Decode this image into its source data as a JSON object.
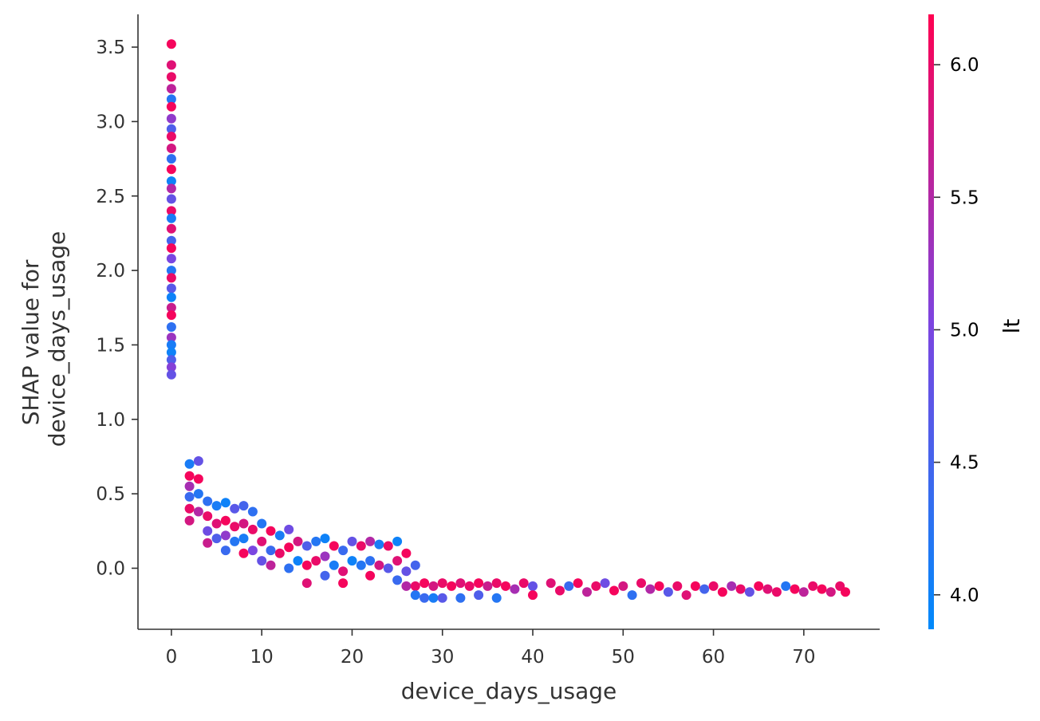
{
  "chart_data": {
    "type": "scatter",
    "title": "",
    "xlabel": "device_days_usage",
    "ylabel_lines": [
      "SHAP value for",
      "device_days_usage"
    ],
    "xlim": [
      -3.7,
      78.4
    ],
    "ylim": [
      -0.41,
      3.72
    ],
    "xticks": [
      0,
      10,
      20,
      30,
      40,
      50,
      60,
      70
    ],
    "xtick_labels": [
      "0",
      "10",
      "20",
      "30",
      "40",
      "50",
      "60",
      "70"
    ],
    "yticks": [
      0.0,
      0.5,
      1.0,
      1.5,
      2.0,
      2.5,
      3.0,
      3.5
    ],
    "ytick_labels": [
      "0.0",
      "0.5",
      "1.0",
      "1.5",
      "2.0",
      "2.5",
      "3.0",
      "3.5"
    ],
    "grid": false,
    "colorbar": {
      "label": "lt",
      "range": [
        3.87,
        6.19
      ],
      "ticks": [
        4.0,
        4.5,
        5.0,
        5.5,
        6.0
      ],
      "tick_labels": [
        "4.0",
        "4.5",
        "5.0",
        "5.5",
        "6.0"
      ],
      "colors": [
        "#008afb",
        "#7d44e0",
        "#ff0051"
      ]
    },
    "series": [
      {
        "color_by": "lt",
        "points": [
          [
            0,
            3.52,
            6.1
          ],
          [
            0,
            3.38,
            5.9
          ],
          [
            0,
            3.3,
            6.0
          ],
          [
            0,
            3.22,
            5.6
          ],
          [
            0,
            3.15,
            4.2
          ],
          [
            0,
            3.1,
            6.1
          ],
          [
            0,
            3.02,
            5.2
          ],
          [
            0,
            2.95,
            4.6
          ],
          [
            0,
            2.9,
            6.0
          ],
          [
            0,
            2.82,
            5.8
          ],
          [
            0,
            2.75,
            4.3
          ],
          [
            0,
            2.68,
            6.1
          ],
          [
            0,
            2.6,
            4.0
          ],
          [
            0,
            2.55,
            5.5
          ],
          [
            0,
            2.48,
            4.8
          ],
          [
            0,
            2.4,
            6.0
          ],
          [
            0,
            2.35,
            4.1
          ],
          [
            0,
            2.28,
            5.9
          ],
          [
            0,
            2.2,
            4.5
          ],
          [
            0,
            2.15,
            6.1
          ],
          [
            0,
            2.08,
            5.0
          ],
          [
            0,
            2.0,
            4.2
          ],
          [
            0,
            1.95,
            6.0
          ],
          [
            0,
            1.88,
            4.7
          ],
          [
            0,
            1.82,
            4.0
          ],
          [
            0,
            1.75,
            5.7
          ],
          [
            0,
            1.7,
            6.1
          ],
          [
            0,
            1.62,
            4.3
          ],
          [
            0,
            1.55,
            5.3
          ],
          [
            0,
            1.5,
            4.1
          ],
          [
            0,
            1.45,
            4.0
          ],
          [
            0,
            1.4,
            4.6
          ],
          [
            0,
            1.35,
            5.1
          ],
          [
            0,
            1.3,
            4.8
          ],
          [
            2,
            0.7,
            4.1
          ],
          [
            2,
            0.62,
            6.1
          ],
          [
            2,
            0.55,
            5.4
          ],
          [
            2,
            0.48,
            4.4
          ],
          [
            2,
            0.4,
            6.0
          ],
          [
            2,
            0.32,
            5.8
          ],
          [
            3,
            0.72,
            4.8
          ],
          [
            3,
            0.6,
            6.1
          ],
          [
            3,
            0.5,
            4.2
          ],
          [
            3,
            0.38,
            5.5
          ],
          [
            4,
            0.45,
            4.3
          ],
          [
            4,
            0.35,
            6.0
          ],
          [
            4,
            0.25,
            4.9
          ],
          [
            4,
            0.17,
            5.7
          ],
          [
            5,
            0.42,
            4.1
          ],
          [
            5,
            0.3,
            5.9
          ],
          [
            5,
            0.2,
            4.6
          ],
          [
            6,
            0.44,
            4.0
          ],
          [
            6,
            0.32,
            6.1
          ],
          [
            6,
            0.22,
            5.2
          ],
          [
            6,
            0.12,
            4.4
          ],
          [
            7,
            0.4,
            4.7
          ],
          [
            7,
            0.28,
            6.0
          ],
          [
            7,
            0.18,
            4.2
          ],
          [
            8,
            0.42,
            4.5
          ],
          [
            8,
            0.3,
            5.8
          ],
          [
            8,
            0.2,
            4.1
          ],
          [
            8,
            0.1,
            6.1
          ],
          [
            9,
            0.38,
            4.3
          ],
          [
            9,
            0.26,
            6.0
          ],
          [
            9,
            0.12,
            5.0
          ],
          [
            10,
            0.3,
            4.2
          ],
          [
            10,
            0.18,
            5.9
          ],
          [
            10,
            0.05,
            4.8
          ],
          [
            11,
            0.25,
            6.1
          ],
          [
            11,
            0.12,
            4.4
          ],
          [
            11,
            0.02,
            5.6
          ],
          [
            12,
            0.22,
            4.1
          ],
          [
            12,
            0.1,
            6.0
          ],
          [
            13,
            0.26,
            4.9
          ],
          [
            13,
            0.14,
            6.1
          ],
          [
            13,
            0.0,
            4.3
          ],
          [
            14,
            0.18,
            5.8
          ],
          [
            14,
            0.05,
            4.0
          ],
          [
            15,
            0.15,
            4.6
          ],
          [
            15,
            0.02,
            6.1
          ],
          [
            15,
            -0.1,
            5.9
          ],
          [
            16,
            0.18,
            4.2
          ],
          [
            16,
            0.05,
            6.0
          ],
          [
            17,
            0.2,
            4.0
          ],
          [
            17,
            0.08,
            5.3
          ],
          [
            17,
            -0.05,
            4.5
          ],
          [
            18,
            0.15,
            6.1
          ],
          [
            18,
            0.02,
            4.1
          ],
          [
            19,
            0.12,
            4.4
          ],
          [
            19,
            -0.02,
            5.9
          ],
          [
            19,
            -0.1,
            6.1
          ],
          [
            20,
            0.18,
            4.8
          ],
          [
            20,
            0.05,
            4.0
          ],
          [
            21,
            0.15,
            6.0
          ],
          [
            21,
            0.02,
            4.2
          ],
          [
            22,
            0.18,
            5.5
          ],
          [
            22,
            0.05,
            4.3
          ],
          [
            22,
            -0.05,
            6.1
          ],
          [
            23,
            0.16,
            4.1
          ],
          [
            23,
            0.02,
            5.8
          ],
          [
            24,
            0.15,
            6.0
          ],
          [
            24,
            0.0,
            4.7
          ],
          [
            25,
            0.18,
            4.0
          ],
          [
            25,
            0.05,
            5.9
          ],
          [
            25,
            -0.08,
            4.4
          ],
          [
            26,
            0.1,
            6.1
          ],
          [
            26,
            -0.02,
            4.8
          ],
          [
            26,
            -0.12,
            5.5
          ],
          [
            27,
            0.02,
            4.5
          ],
          [
            27,
            -0.12,
            6.0
          ],
          [
            27,
            -0.18,
            4.2
          ],
          [
            28,
            -0.1,
            6.1
          ],
          [
            28,
            -0.2,
            4.4
          ],
          [
            29,
            -0.12,
            5.8
          ],
          [
            29,
            -0.2,
            4.1
          ],
          [
            30,
            -0.1,
            6.0
          ],
          [
            30,
            -0.2,
            4.7
          ],
          [
            31,
            -0.12,
            6.1
          ],
          [
            32,
            -0.1,
            5.9
          ],
          [
            32,
            -0.2,
            4.3
          ],
          [
            33,
            -0.12,
            6.0
          ],
          [
            34,
            -0.1,
            6.1
          ],
          [
            34,
            -0.18,
            4.6
          ],
          [
            35,
            -0.12,
            5.7
          ],
          [
            36,
            -0.1,
            6.0
          ],
          [
            36,
            -0.2,
            4.2
          ],
          [
            37,
            -0.12,
            6.1
          ],
          [
            38,
            -0.14,
            5.4
          ],
          [
            39,
            -0.1,
            6.0
          ],
          [
            40,
            -0.12,
            4.8
          ],
          [
            40,
            -0.18,
            6.1
          ],
          [
            42,
            -0.1,
            5.9
          ],
          [
            43,
            -0.15,
            6.0
          ],
          [
            44,
            -0.12,
            4.4
          ],
          [
            45,
            -0.1,
            6.1
          ],
          [
            46,
            -0.16,
            5.6
          ],
          [
            47,
            -0.12,
            6.0
          ],
          [
            48,
            -0.1,
            4.9
          ],
          [
            49,
            -0.15,
            6.1
          ],
          [
            50,
            -0.12,
            5.8
          ],
          [
            51,
            -0.18,
            4.3
          ],
          [
            52,
            -0.1,
            6.0
          ],
          [
            53,
            -0.14,
            5.5
          ],
          [
            54,
            -0.12,
            6.1
          ],
          [
            55,
            -0.16,
            4.7
          ],
          [
            56,
            -0.12,
            6.0
          ],
          [
            57,
            -0.18,
            5.9
          ],
          [
            58,
            -0.12,
            6.1
          ],
          [
            59,
            -0.14,
            4.5
          ],
          [
            60,
            -0.12,
            6.0
          ],
          [
            61,
            -0.16,
            6.1
          ],
          [
            62,
            -0.12,
            5.4
          ],
          [
            63,
            -0.14,
            6.0
          ],
          [
            64,
            -0.16,
            4.8
          ],
          [
            65,
            -0.12,
            6.1
          ],
          [
            66,
            -0.14,
            5.9
          ],
          [
            67,
            -0.16,
            6.0
          ],
          [
            68,
            -0.12,
            4.2
          ],
          [
            69,
            -0.14,
            6.1
          ],
          [
            70,
            -0.16,
            5.6
          ],
          [
            71,
            -0.12,
            6.0
          ],
          [
            72,
            -0.14,
            6.1
          ],
          [
            73,
            -0.16,
            5.8
          ],
          [
            74,
            -0.12,
            6.0
          ],
          [
            74.6,
            -0.16,
            6.1
          ]
        ]
      }
    ]
  }
}
